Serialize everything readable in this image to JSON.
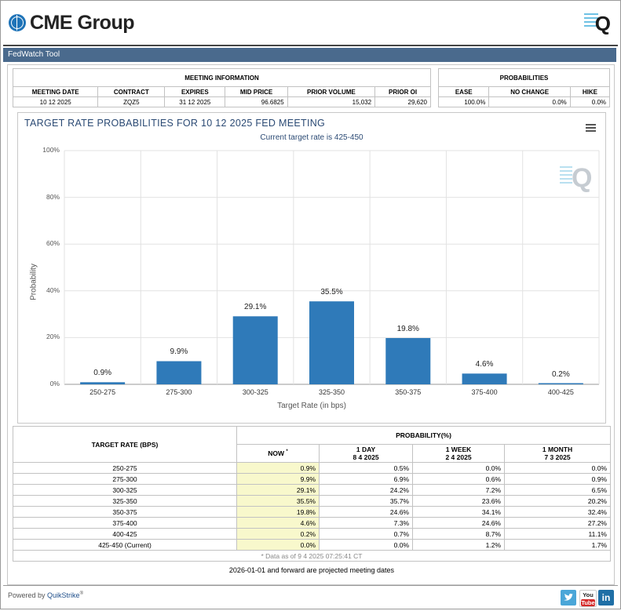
{
  "header": {
    "brand": "CME Group",
    "q_logo": "Q",
    "tool_title": "FedWatch Tool"
  },
  "meeting_info": {
    "title": "MEETING INFORMATION",
    "headers": [
      "MEETING DATE",
      "CONTRACT",
      "EXPIRES",
      "MID PRICE",
      "PRIOR VOLUME",
      "PRIOR OI"
    ],
    "values": [
      "10 12 2025",
      "ZQZ5",
      "31 12 2025",
      "96.6825",
      "15,032",
      "29,620"
    ]
  },
  "probabilities": {
    "title": "PROBABILITIES",
    "headers": [
      "EASE",
      "NO CHANGE",
      "HIKE"
    ],
    "values": [
      "100.0%",
      "0.0%",
      "0.0%"
    ]
  },
  "chart": {
    "title": "TARGET RATE PROBABILITIES FOR 10 12 2025 FED MEETING",
    "subtitle": "Current target rate is 425-450",
    "watermark": "Q"
  },
  "chart_data": {
    "type": "bar",
    "title": "TARGET RATE PROBABILITIES FOR 10 12 2025 FED MEETING",
    "subtitle": "Current target rate is 425-450",
    "xlabel": "Target Rate (in bps)",
    "ylabel": "Probability",
    "categories": [
      "250-275",
      "275-300",
      "300-325",
      "325-350",
      "350-375",
      "375-400",
      "400-425"
    ],
    "values": [
      0.9,
      9.9,
      29.1,
      35.5,
      19.8,
      4.6,
      0.2
    ],
    "value_labels": [
      "0.9%",
      "9.9%",
      "29.1%",
      "35.5%",
      "19.8%",
      "4.6%",
      "0.2%"
    ],
    "y_ticks": [
      "0%",
      "20%",
      "40%",
      "60%",
      "80%",
      "100%"
    ],
    "ylim": [
      0,
      100
    ],
    "grid": true,
    "bar_color": "#2f7ab9"
  },
  "prob_table": {
    "col_target": "TARGET RATE (BPS)",
    "col_group": "PROBABILITY(%)",
    "now_label": "NOW",
    "now_mark": "*",
    "one_day": "1 DAY",
    "one_day_date": "8 4 2025",
    "one_week": "1 WEEK",
    "one_week_date": "2 4 2025",
    "one_month": "1 MONTH",
    "one_month_date": "7 3 2025",
    "rows": [
      {
        "rate": "250-275",
        "now": "0.9%",
        "day": "0.5%",
        "week": "0.0%",
        "month": "0.0%"
      },
      {
        "rate": "275-300",
        "now": "9.9%",
        "day": "6.9%",
        "week": "0.6%",
        "month": "0.9%"
      },
      {
        "rate": "300-325",
        "now": "29.1%",
        "day": "24.2%",
        "week": "7.2%",
        "month": "6.5%"
      },
      {
        "rate": "325-350",
        "now": "35.5%",
        "day": "35.7%",
        "week": "23.6%",
        "month": "20.2%"
      },
      {
        "rate": "350-375",
        "now": "19.8%",
        "day": "24.6%",
        "week": "34.1%",
        "month": "32.4%"
      },
      {
        "rate": "375-400",
        "now": "4.6%",
        "day": "7.3%",
        "week": "24.6%",
        "month": "27.2%"
      },
      {
        "rate": "400-425",
        "now": "0.2%",
        "day": "0.7%",
        "week": "8.7%",
        "month": "11.1%"
      },
      {
        "rate": "425-450 (Current)",
        "now": "0.0%",
        "day": "0.0%",
        "week": "1.2%",
        "month": "1.7%"
      }
    ],
    "data_note": "* Data as of 9 4 2025 07:25:41 CT",
    "forward_note": "2026-01-01 and forward are projected meeting dates"
  },
  "footer": {
    "powered_prefix": "Powered by",
    "powered_brand": "QuikStrike",
    "powered_reg": "®",
    "youtube_top": "You",
    "youtube_bottom": "Tube",
    "linkedin": "in"
  }
}
